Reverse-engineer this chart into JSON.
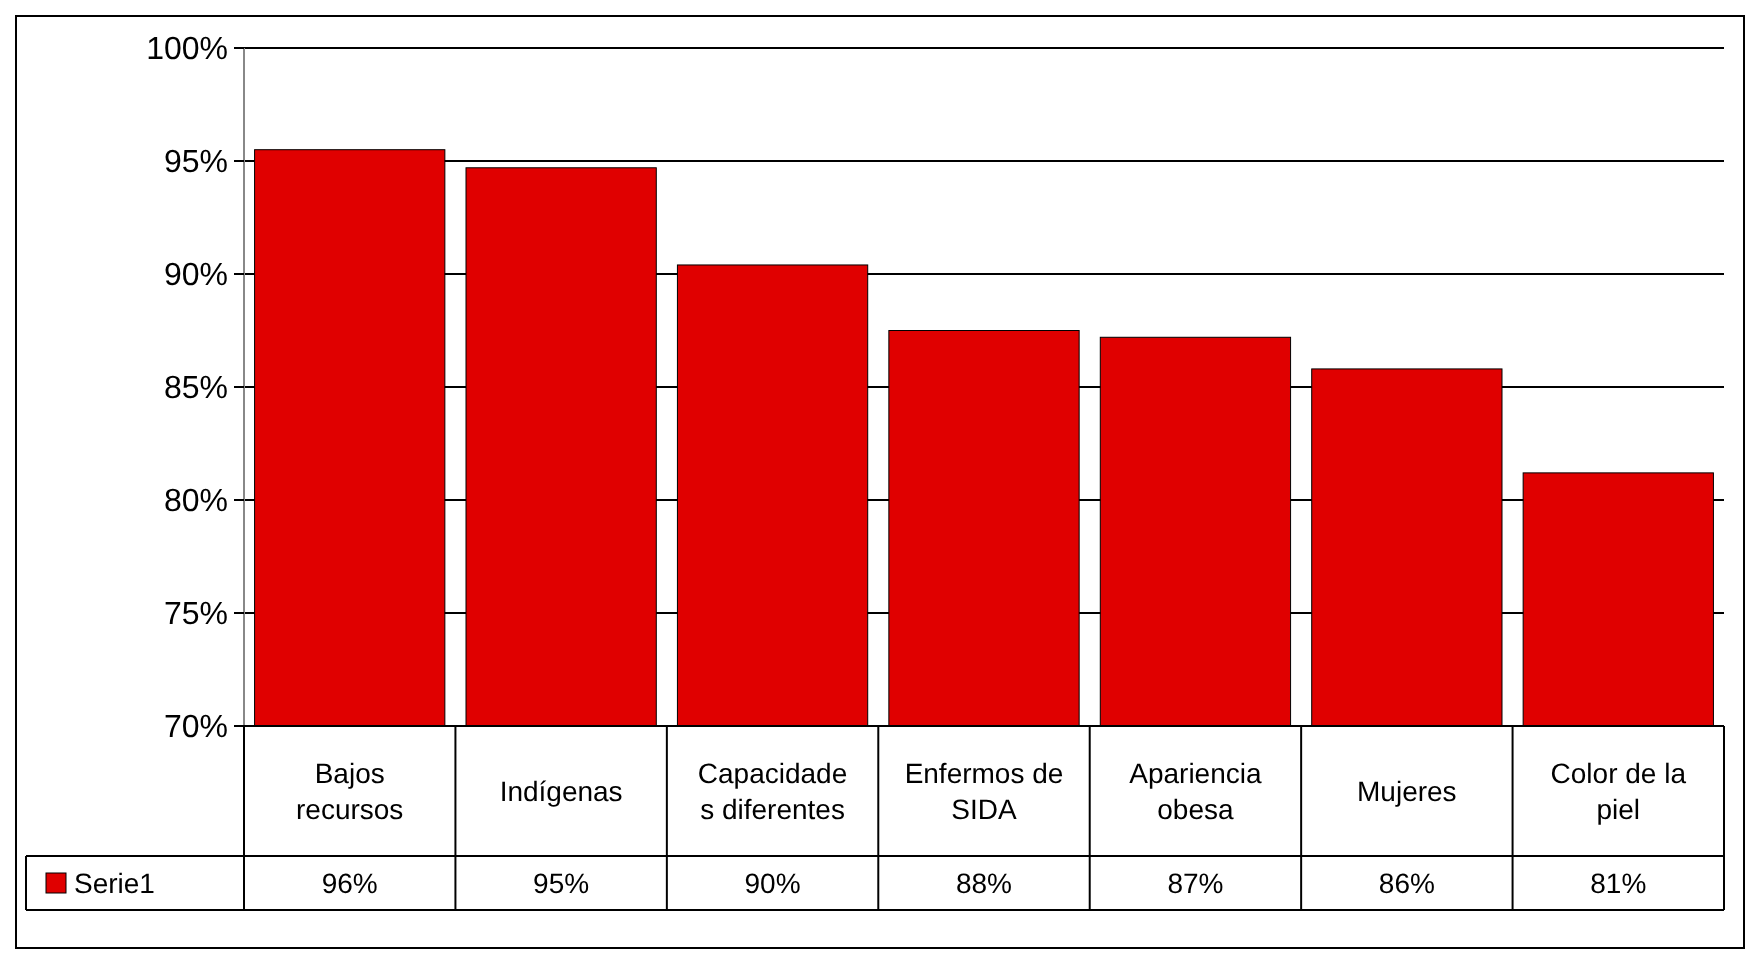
{
  "chart_data": {
    "type": "bar",
    "categories": [
      "Bajos recursos",
      "Indígenas",
      "Capacidade s diferentes",
      "Enfermos de SIDA",
      "Apariencia obesa",
      "Mujeres",
      "Color de la piel"
    ],
    "series": [
      {
        "name": "Serie1",
        "color": "#e00000",
        "values": [
          95.5,
          94.7,
          90.4,
          87.5,
          87.2,
          85.8,
          81.2
        ],
        "value_labels": [
          "96%",
          "95%",
          "90%",
          "88%",
          "87%",
          "86%",
          "81%"
        ]
      }
    ],
    "ylim": [
      70,
      100
    ],
    "yticks": [
      {
        "value": 70,
        "label": "70%"
      },
      {
        "value": 75,
        "label": "75%"
      },
      {
        "value": 80,
        "label": "80%"
      },
      {
        "value": 85,
        "label": "85%"
      },
      {
        "value": 90,
        "label": "90%"
      },
      {
        "value": 95,
        "label": "95%"
      },
      {
        "value": 100,
        "label": "100%"
      }
    ],
    "grid": "y",
    "legend": "bottom"
  }
}
